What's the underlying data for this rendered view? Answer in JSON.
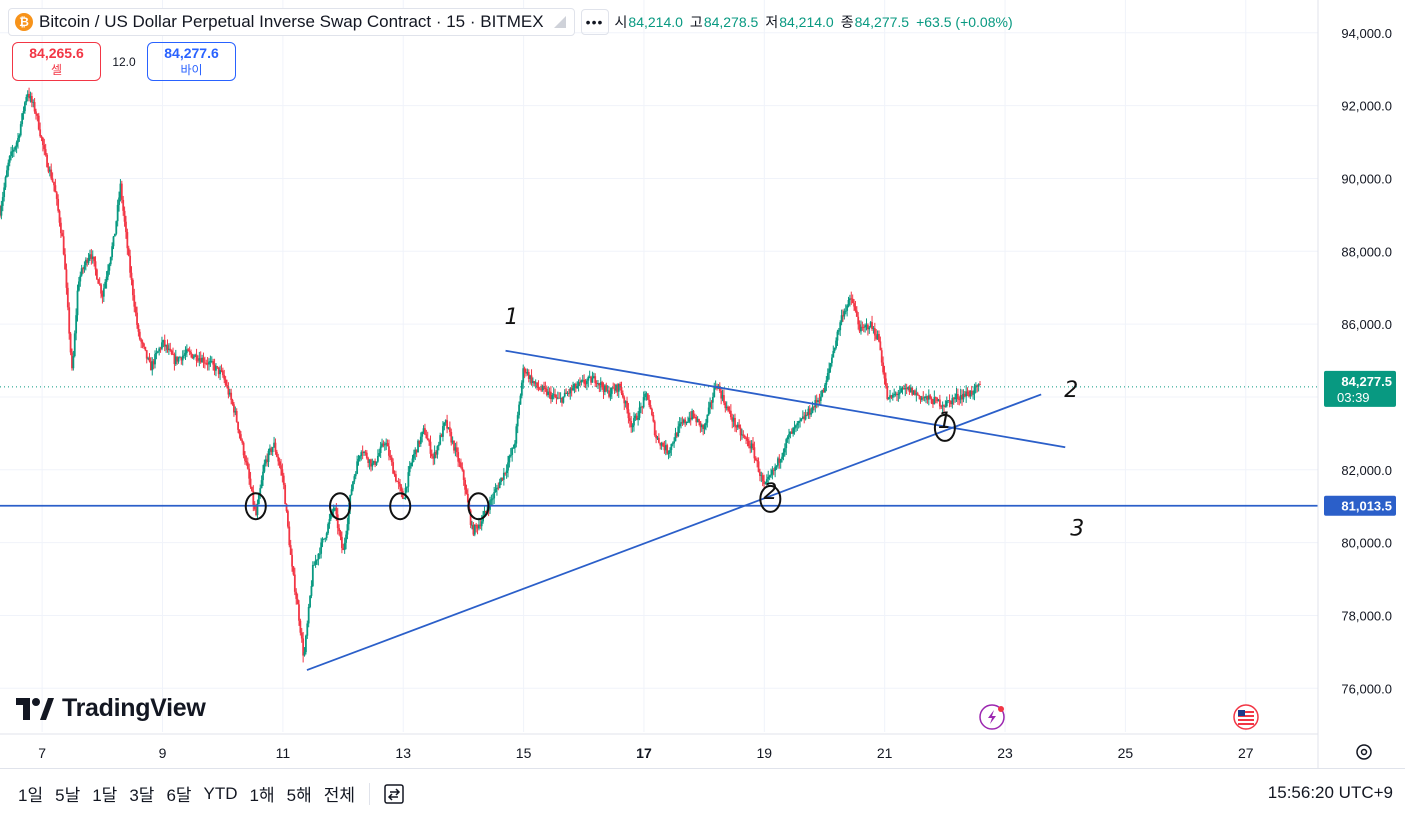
{
  "header": {
    "symbol_icon": "bitcoin-icon",
    "title": "Bitcoin / US Dollar Perpetual Inverse Swap Contract · 15 · BITMEX",
    "more_icon": "more-dots-icon",
    "ohlc": [
      {
        "label": "시",
        "value": "84,214.0"
      },
      {
        "label": "고",
        "value": "84,278.5"
      },
      {
        "label": "저",
        "value": "84,214.0"
      },
      {
        "label": "종",
        "value": "84,277.5"
      }
    ],
    "change": "+63.5 (+0.08%)"
  },
  "trade": {
    "sell_price": "84,265.6",
    "sell_label": "셀",
    "spread": "12.0",
    "buy_price": "84,277.6",
    "buy_label": "바이"
  },
  "logo_text": "TradingView",
  "colors": {
    "up": "#089981",
    "down": "#f23645",
    "line": "#2b5fc9",
    "axis_text": "#131722"
  },
  "chart_data": {
    "type": "candlestick",
    "interval": "15",
    "exchange": "BITMEX",
    "ylim": [
      74800,
      94900
    ],
    "xlim": [
      6.3,
      28.2
    ],
    "y_ticks": [
      "94,000.0",
      "92,000.0",
      "90,000.0",
      "88,000.0",
      "86,000.0",
      "84,000.0",
      "82,000.0",
      "80,000.0",
      "78,000.0",
      "76,000.0"
    ],
    "x_ticks": [
      {
        "label": "7",
        "x": 7,
        "bold": false
      },
      {
        "label": "9",
        "x": 9,
        "bold": false
      },
      {
        "label": "11",
        "x": 11,
        "bold": false
      },
      {
        "label": "13",
        "x": 13,
        "bold": false
      },
      {
        "label": "15",
        "x": 15,
        "bold": false
      },
      {
        "label": "17",
        "x": 17,
        "bold": true
      },
      {
        "label": "19",
        "x": 19,
        "bold": false
      },
      {
        "label": "21",
        "x": 21,
        "bold": false
      },
      {
        "label": "23",
        "x": 23,
        "bold": false
      },
      {
        "label": "25",
        "x": 25,
        "bold": false
      },
      {
        "label": "27",
        "x": 27,
        "bold": false
      }
    ],
    "price_path": [
      [
        6.3,
        89100
      ],
      [
        6.45,
        90500
      ],
      [
        6.6,
        91100
      ],
      [
        6.75,
        92400
      ],
      [
        6.9,
        91800
      ],
      [
        7.05,
        90600
      ],
      [
        7.2,
        89800
      ],
      [
        7.35,
        88200
      ],
      [
        7.5,
        84600
      ],
      [
        7.6,
        87200
      ],
      [
        7.8,
        88000
      ],
      [
        8.0,
        86800
      ],
      [
        8.2,
        88400
      ],
      [
        8.3,
        89800
      ],
      [
        8.45,
        87600
      ],
      [
        8.6,
        85700
      ],
      [
        8.8,
        84800
      ],
      [
        9.0,
        85500
      ],
      [
        9.2,
        85000
      ],
      [
        9.4,
        85200
      ],
      [
        9.6,
        85100
      ],
      [
        9.8,
        84900
      ],
      [
        10.0,
        84600
      ],
      [
        10.2,
        83600
      ],
      [
        10.4,
        82100
      ],
      [
        10.55,
        80700
      ],
      [
        10.7,
        82200
      ],
      [
        10.85,
        82700
      ],
      [
        11.0,
        81800
      ],
      [
        11.15,
        79300
      ],
      [
        11.25,
        78200
      ],
      [
        11.35,
        76800
      ],
      [
        11.5,
        79300
      ],
      [
        11.7,
        80200
      ],
      [
        11.85,
        81000
      ],
      [
        12.0,
        79700
      ],
      [
        12.15,
        81600
      ],
      [
        12.3,
        82600
      ],
      [
        12.5,
        82100
      ],
      [
        12.7,
        82800
      ],
      [
        12.85,
        81900
      ],
      [
        13.0,
        81200
      ],
      [
        13.15,
        82300
      ],
      [
        13.35,
        83100
      ],
      [
        13.5,
        82300
      ],
      [
        13.7,
        83300
      ],
      [
        13.85,
        82600
      ],
      [
        14.0,
        81800
      ],
      [
        14.15,
        80300
      ],
      [
        14.3,
        80600
      ],
      [
        14.5,
        81300
      ],
      [
        14.7,
        82000
      ],
      [
        14.85,
        82700
      ],
      [
        15.0,
        84800
      ],
      [
        15.2,
        84300
      ],
      [
        15.4,
        84100
      ],
      [
        15.6,
        83900
      ],
      [
        15.8,
        84200
      ],
      [
        16.0,
        84400
      ],
      [
        16.2,
        84500
      ],
      [
        16.4,
        84100
      ],
      [
        16.6,
        84300
      ],
      [
        16.8,
        83200
      ],
      [
        16.95,
        83700
      ],
      [
        17.05,
        84100
      ],
      [
        17.2,
        82900
      ],
      [
        17.4,
        82500
      ],
      [
        17.6,
        83200
      ],
      [
        17.8,
        83500
      ],
      [
        18.0,
        83100
      ],
      [
        18.2,
        84400
      ],
      [
        18.4,
        83600
      ],
      [
        18.6,
        83000
      ],
      [
        18.8,
        82600
      ],
      [
        19.0,
        81500
      ],
      [
        19.2,
        82100
      ],
      [
        19.4,
        82900
      ],
      [
        19.6,
        83300
      ],
      [
        19.8,
        83700
      ],
      [
        20.0,
        84200
      ],
      [
        20.15,
        85300
      ],
      [
        20.3,
        86300
      ],
      [
        20.45,
        86700
      ],
      [
        20.6,
        85800
      ],
      [
        20.75,
        86000
      ],
      [
        20.9,
        85600
      ],
      [
        21.05,
        83900
      ],
      [
        21.2,
        84100
      ],
      [
        21.4,
        84200
      ],
      [
        21.6,
        84000
      ],
      [
        21.8,
        83900
      ],
      [
        22.0,
        83800
      ],
      [
        22.2,
        84000
      ],
      [
        22.4,
        84100
      ],
      [
        22.6,
        84280
      ]
    ],
    "last_price": {
      "label": "84,277.5",
      "countdown": "03:39",
      "value": 84277.5
    },
    "hline": {
      "label": "81,013.5",
      "value": 81013.5
    },
    "trendlines": [
      {
        "from": [
          14.7,
          85270
        ],
        "to": [
          24.0,
          82620
        ]
      },
      {
        "from": [
          11.4,
          76500
        ],
        "to": [
          23.6,
          84070
        ]
      }
    ],
    "annotations": [
      {
        "text": "1",
        "x": 14.8,
        "y": 86000
      },
      {
        "text": "2",
        "x": 24.1,
        "y": 84000
      },
      {
        "text": "3",
        "x": 24.2,
        "y": 80200
      },
      {
        "text": "1",
        "x": 22.0,
        "y": 83150
      },
      {
        "text": "2",
        "x": 19.1,
        "y": 81200
      }
    ],
    "event_icons": [
      "lightning-icon",
      "us-flag-icon"
    ]
  },
  "bottom": {
    "ranges": [
      "1일",
      "5날",
      "1달",
      "3달",
      "6달",
      "YTD",
      "1해",
      "5해",
      "전체"
    ],
    "compare_icon": "compare-icon",
    "clock": "15:56:20 UTC+9"
  }
}
